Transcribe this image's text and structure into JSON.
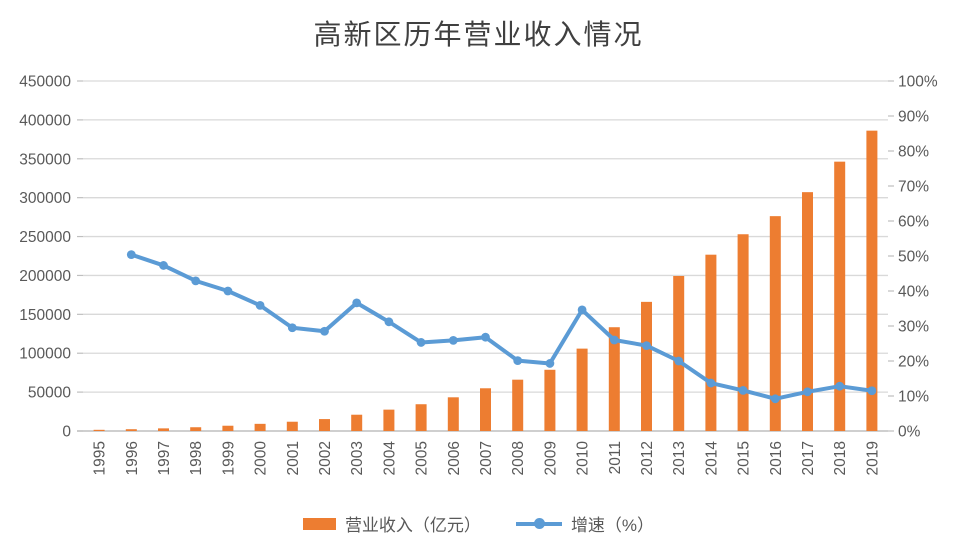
{
  "chart": {
    "title": "高新区历年营业收入情况",
    "legend": {
      "revenue_label": "营业收入（亿元）",
      "growth_label": "增速（%）"
    },
    "colors": {
      "bar": "#ED7D31",
      "line": "#5B9BD5",
      "grid": "#D9D9D9",
      "axis": "#BFBFBF",
      "tick_text": "#595959",
      "title_text": "#404040"
    }
  },
  "chart_data": {
    "type": "bar",
    "subtype": "bar-line-combo",
    "title": "高新区历年营业收入情况",
    "categories": [
      "1995",
      "1996",
      "1997",
      "1998",
      "1999",
      "2000",
      "2001",
      "2002",
      "2003",
      "2004",
      "2005",
      "2006",
      "2007",
      "2008",
      "2009",
      "2010",
      "2011",
      "2012",
      "2013",
      "2014",
      "2015",
      "2016",
      "2017",
      "2018",
      "2019"
    ],
    "series": [
      {
        "name": "营业收入（亿元）",
        "type": "bar",
        "axis": "left",
        "color": "#ED7D31",
        "values": [
          1529,
          2300,
          3388,
          4840,
          6775,
          9209,
          11928,
          15326,
          20939,
          27466,
          34416,
          43320,
          54926,
          65986,
          78707,
          105917,
          133425,
          166034,
          199303,
          226689,
          252969,
          276244,
          307083,
          346295,
          386159
        ]
      },
      {
        "name": "增速（%）",
        "type": "line",
        "axis": "right",
        "color": "#5B9BD5",
        "values": [
          null,
          50.4,
          47.3,
          42.9,
          40.0,
          35.9,
          29.5,
          28.5,
          36.6,
          31.2,
          25.3,
          25.9,
          26.8,
          20.1,
          19.3,
          34.6,
          26.0,
          24.4,
          20.0,
          13.7,
          11.6,
          9.2,
          11.2,
          12.8,
          11.5
        ]
      }
    ],
    "left_axis": {
      "min": 0,
      "max": 450000,
      "step": 50000,
      "tick_labels": [
        "0",
        "50000",
        "100000",
        "150000",
        "200000",
        "250000",
        "300000",
        "350000",
        "400000",
        "450000"
      ]
    },
    "right_axis": {
      "min": 0,
      "max": 100,
      "step": 10,
      "tick_labels": [
        "0%",
        "10%",
        "20%",
        "30%",
        "40%",
        "50%",
        "60%",
        "70%",
        "80%",
        "90%",
        "100%"
      ]
    },
    "grid": true,
    "legend_position": "bottom",
    "x_label_rotation": -90
  }
}
